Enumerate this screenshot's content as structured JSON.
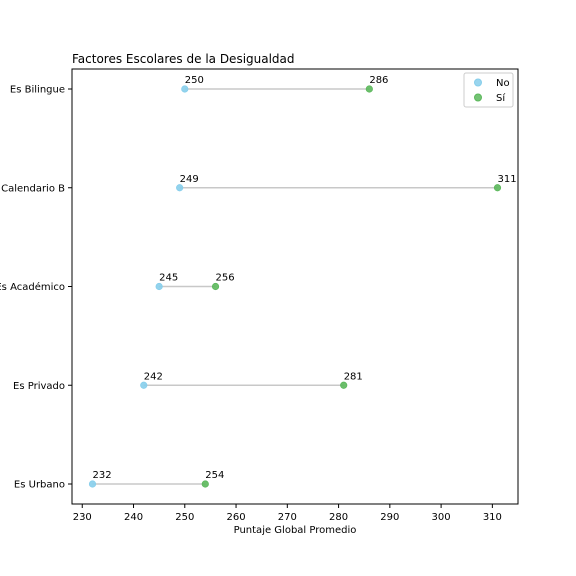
{
  "chart_data": {
    "type": "dumbbell",
    "title": "Factores Escolares de la Desigualdad",
    "xlabel": "Puntaje Global Promedio",
    "ylabel": "",
    "xlim": [
      228,
      315
    ],
    "xticks": [
      230,
      240,
      250,
      260,
      270,
      280,
      290,
      300,
      310
    ],
    "categories": [
      "Es Bilingue",
      "Calendario B",
      "Es Académico",
      "Es Privado",
      "Es Urbano"
    ],
    "series": [
      {
        "name": "No",
        "color": "#87ceeb",
        "values": [
          250,
          249,
          245,
          242,
          232
        ]
      },
      {
        "name": "Sí",
        "color": "#5cb85c",
        "values": [
          286,
          311,
          256,
          281,
          254
        ]
      }
    ],
    "connector_color": "#c8c8c8",
    "grid": false,
    "legend_position": "top-right"
  }
}
